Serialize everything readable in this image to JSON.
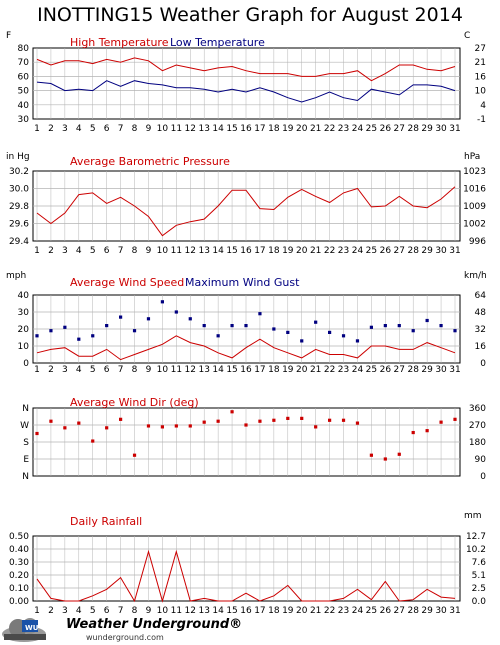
{
  "title": "INOTTING15 Weather Graph for August 2014",
  "days": [
    1,
    2,
    3,
    4,
    5,
    6,
    7,
    8,
    9,
    10,
    11,
    12,
    13,
    14,
    15,
    16,
    17,
    18,
    19,
    20,
    21,
    22,
    23,
    24,
    25,
    26,
    27,
    28,
    29,
    30,
    31
  ],
  "colors": {
    "red": "#cc0000",
    "blue": "#000080",
    "grid": "#b4b4b4"
  },
  "chart_data": [
    {
      "type": "line",
      "title": "",
      "left_unit": "F",
      "right_unit": "C",
      "ylim": [
        30,
        80
      ],
      "left_ticks": [
        "80",
        "70",
        "60",
        "50",
        "40",
        "30"
      ],
      "right_ticks": [
        "27",
        "21",
        "16",
        "10",
        "4",
        "-1"
      ],
      "series": [
        {
          "name": "High Temperature",
          "color": "#cc0000",
          "values": [
            72,
            68,
            71,
            71,
            69,
            72,
            70,
            73,
            71,
            64,
            68,
            66,
            64,
            66,
            67,
            64,
            62,
            62,
            62,
            60,
            60,
            62,
            62,
            64,
            57,
            62,
            68,
            68,
            65,
            64,
            67
          ]
        },
        {
          "name": "Low Temperature",
          "color": "#000080",
          "values": [
            56,
            55,
            50,
            51,
            50,
            57,
            53,
            57,
            55,
            54,
            52,
            52,
            51,
            49,
            51,
            49,
            52,
            49,
            45,
            42,
            45,
            49,
            45,
            43,
            51,
            49,
            47,
            54,
            54,
            53,
            50
          ]
        }
      ]
    },
    {
      "type": "line",
      "left_unit": "in Hg",
      "right_unit": "hPa",
      "ylim": [
        29.4,
        30.2
      ],
      "left_ticks": [
        "30.2",
        "30.0",
        "29.8",
        "29.6",
        "29.4"
      ],
      "right_ticks": [
        "1023",
        "1016",
        "1009",
        "1002",
        "996"
      ],
      "series": [
        {
          "name": "Average Barometric Pressure",
          "color": "#cc0000",
          "values": [
            29.72,
            29.6,
            29.72,
            29.93,
            29.95,
            29.83,
            29.9,
            29.8,
            29.68,
            29.46,
            29.58,
            29.62,
            29.65,
            29.8,
            29.98,
            29.98,
            29.77,
            29.76,
            29.9,
            29.99,
            29.91,
            29.84,
            29.95,
            30.0,
            29.79,
            29.8,
            29.91,
            29.8,
            29.78,
            29.88,
            30.02
          ]
        }
      ]
    },
    {
      "type": "line",
      "left_unit": "mph",
      "right_unit": "km/h",
      "ylim": [
        0,
        40
      ],
      "left_ticks": [
        "40",
        "30",
        "20",
        "10",
        "0"
      ],
      "right_ticks": [
        "64",
        "48",
        "32",
        "16",
        "0"
      ],
      "series": [
        {
          "name": "Average Wind Speed",
          "color": "#cc0000",
          "values": [
            6,
            8,
            9,
            4,
            4,
            8,
            2,
            5,
            8,
            11,
            16,
            12,
            10,
            6,
            3,
            9,
            14,
            9,
            6,
            3,
            8,
            5,
            5,
            3,
            10,
            10,
            8,
            8,
            12,
            9,
            6
          ]
        },
        {
          "name": "Maximum Wind Gust",
          "color": "#000080",
          "values": [
            16,
            19,
            21,
            14,
            16,
            22,
            27,
            19,
            26,
            36,
            30,
            26,
            22,
            16,
            22,
            22,
            29,
            20,
            18,
            13,
            24,
            18,
            16,
            13,
            21,
            22,
            22,
            19,
            25,
            22,
            19
          ]
        }
      ]
    },
    {
      "type": "scatter",
      "left_unit": "",
      "right_unit": "",
      "ylim": [
        0,
        360
      ],
      "left_ticks": [
        "N",
        "W",
        "S",
        "E",
        "N"
      ],
      "right_ticks": [
        "360",
        "270",
        "180",
        "90",
        "0"
      ],
      "series": [
        {
          "name": "Average Wind Dir (deg)",
          "color": "#cc0000",
          "values": [
            225,
            290,
            255,
            280,
            185,
            255,
            300,
            110,
            265,
            260,
            265,
            265,
            285,
            290,
            340,
            270,
            290,
            295,
            305,
            305,
            260,
            295,
            295,
            280,
            110,
            90,
            115,
            230,
            240,
            285,
            300
          ]
        }
      ]
    },
    {
      "type": "area",
      "left_unit": "",
      "right_unit": "mm",
      "ylim": [
        0,
        0.5
      ],
      "left_ticks": [
        "0.50",
        "0.40",
        "0.30",
        "0.20",
        "0.10",
        "0.00"
      ],
      "right_ticks": [
        "12.7",
        "10.2",
        "7.6",
        "5.1",
        "2.5",
        "0.0"
      ],
      "series": [
        {
          "name": "Daily Rainfall",
          "color": "#cc0000",
          "values": [
            0.17,
            0.02,
            0,
            0,
            0.04,
            0.09,
            0.18,
            0,
            0.38,
            0,
            0.38,
            0,
            0.02,
            0,
            0,
            0.06,
            0,
            0.04,
            0.12,
            0,
            0,
            0,
            0.02,
            0.09,
            0.01,
            0.15,
            0,
            0.01,
            0.09,
            0.03,
            0.02
          ]
        }
      ]
    }
  ],
  "branding": {
    "name": "Weather Underground®",
    "url": "wunderground.com"
  }
}
